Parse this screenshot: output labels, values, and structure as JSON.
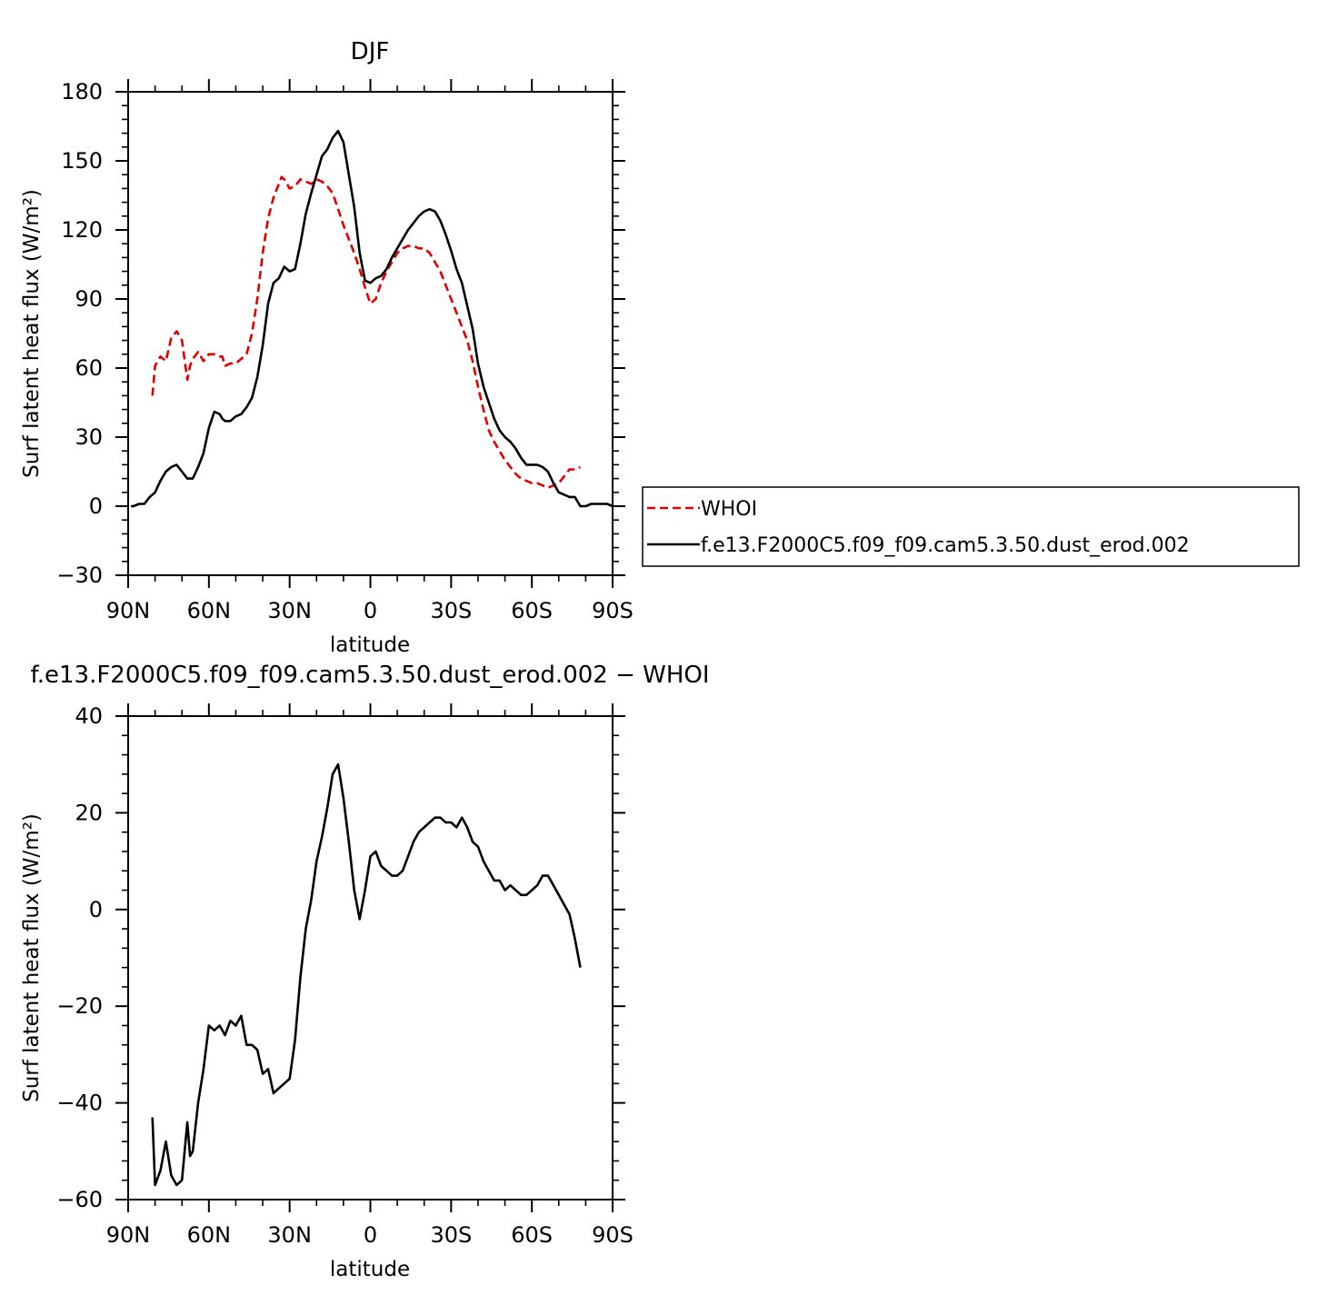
{
  "colors": {
    "model": "#000000",
    "obs": "#e00000",
    "background": "#ffffff"
  },
  "legend": {
    "entries": [
      {
        "label": "WHOI",
        "color": "#e00000",
        "dash": "dashed"
      },
      {
        "label": "f.e13.F2000C5.f09_f09.cam5.3.50.dust_erod.002",
        "color": "#000000",
        "dash": "solid"
      }
    ]
  },
  "chart_data": [
    {
      "type": "line",
      "title": "DJF",
      "xlabel": "latitude",
      "ylabel": "Surf latent heat flux (W/m²)",
      "xlim": [
        90,
        -90
      ],
      "ylim": [
        -30,
        180
      ],
      "xticks": [
        90,
        60,
        30,
        0,
        -30,
        -60,
        -90
      ],
      "xticklabels": [
        "90N",
        "60N",
        "30N",
        "0",
        "30S",
        "60S",
        "90S"
      ],
      "yticks": [
        -30,
        0,
        30,
        60,
        90,
        120,
        150,
        180
      ],
      "yticklabels": [
        "−30",
        "0",
        "30",
        "60",
        "90",
        "120",
        "150",
        "180"
      ],
      "grid": false,
      "legend_position": "right",
      "series": [
        {
          "name": "WHOI",
          "color": "#e00000",
          "dash": "dashed",
          "x": [
            81,
            80,
            78,
            76,
            75,
            74,
            72,
            70,
            68,
            67,
            66,
            64,
            62,
            60,
            58,
            56,
            55,
            54,
            52,
            50,
            48,
            46,
            44,
            42,
            40,
            38,
            36,
            34,
            33,
            32,
            30,
            28,
            26,
            24,
            22,
            20,
            18,
            16,
            14,
            12,
            10,
            8,
            6,
            4,
            2,
            0,
            -2,
            -4,
            -6,
            -8,
            -10,
            -12,
            -14,
            -16,
            -18,
            -20,
            -22,
            -24,
            -26,
            -28,
            -30,
            -32,
            -34,
            -36,
            -38,
            -40,
            -42,
            -44,
            -46,
            -48,
            -50,
            -52,
            -54,
            -56,
            -58,
            -60,
            -62,
            -64,
            -66,
            -68,
            -70,
            -72,
            -74,
            -76,
            -78
          ],
          "y": [
            48,
            61,
            65,
            63,
            68,
            73,
            76,
            72,
            55,
            61,
            64,
            67,
            63,
            66,
            66,
            65,
            65,
            61,
            62,
            62,
            64,
            66,
            75,
            90,
            110,
            125,
            134,
            140,
            143,
            142,
            138,
            139,
            142,
            141,
            140,
            142,
            141,
            139,
            136,
            129,
            122,
            116,
            110,
            103,
            95,
            88,
            90,
            97,
            102,
            106,
            110,
            112,
            113,
            113,
            112,
            112,
            110,
            106,
            102,
            96,
            90,
            84,
            78,
            72,
            63,
            52,
            42,
            33,
            28,
            24,
            20,
            17,
            14,
            12,
            11,
            10,
            10,
            9,
            8,
            9,
            10,
            13,
            16,
            16,
            17
          ]
        },
        {
          "name": "f.e13.F2000C5.f09_f09.cam5.3.50.dust_erod.002",
          "color": "#000000",
          "dash": "solid",
          "x": [
            89,
            88,
            86,
            84,
            82,
            81,
            80,
            78,
            76,
            74,
            72,
            70,
            68,
            66,
            64,
            62,
            60,
            58,
            56,
            55,
            54,
            52,
            50,
            48,
            46,
            44,
            42,
            40,
            38,
            36,
            34,
            32,
            30,
            28,
            26,
            24,
            22,
            20,
            18,
            16,
            14,
            12,
            10,
            8,
            6,
            4,
            2,
            0,
            -2,
            -4,
            -6,
            -8,
            -10,
            -12,
            -14,
            -16,
            -18,
            -20,
            -22,
            -24,
            -26,
            -28,
            -30,
            -32,
            -34,
            -36,
            -38,
            -40,
            -42,
            -44,
            -46,
            -48,
            -50,
            -52,
            -54,
            -56,
            -58,
            -60,
            -62,
            -64,
            -66,
            -68,
            -70,
            -72,
            -74,
            -76,
            -78,
            -80,
            -82,
            -84,
            -86,
            -88,
            -90
          ],
          "y": [
            0,
            0,
            1,
            1,
            4,
            5,
            6,
            11,
            15,
            17,
            18,
            15,
            12,
            12,
            17,
            23,
            34,
            41,
            40,
            38,
            37,
            37,
            39,
            40,
            43,
            47,
            56,
            70,
            88,
            97,
            99,
            104,
            102,
            103,
            114,
            127,
            136,
            144,
            152,
            155,
            160,
            163,
            158,
            144,
            130,
            110,
            98,
            97,
            99,
            100,
            103,
            108,
            112,
            116,
            120,
            123,
            126,
            128,
            129,
            128,
            124,
            118,
            111,
            103,
            97,
            87,
            77,
            62,
            52,
            45,
            38,
            33,
            30,
            28,
            25,
            21,
            18,
            18,
            18,
            17,
            15,
            10,
            6,
            5,
            4,
            4,
            0,
            0,
            1,
            1,
            1,
            1,
            0
          ]
        }
      ]
    },
    {
      "type": "line",
      "title": "f.e13.F2000C5.f09_f09.cam5.3.50.dust_erod.002 − WHOI",
      "xlabel": "latitude",
      "ylabel": "Surf latent heat flux (W/m²)",
      "xlim": [
        90,
        -90
      ],
      "ylim": [
        -60,
        40
      ],
      "xticks": [
        90,
        60,
        30,
        0,
        -30,
        -60,
        -90
      ],
      "xticklabels": [
        "90N",
        "60N",
        "30N",
        "0",
        "30S",
        "60S",
        "90S"
      ],
      "yticks": [
        -60,
        -40,
        -20,
        0,
        20,
        40
      ],
      "yticklabels": [
        "−60",
        "−40",
        "−20",
        "0",
        "20",
        "40"
      ],
      "grid": false,
      "series": [
        {
          "color": "#000000",
          "dash": "solid",
          "x": [
            81,
            80,
            78,
            76,
            74,
            72,
            70,
            68,
            67,
            66,
            64,
            62,
            60,
            58,
            56,
            55,
            54,
            52,
            50,
            48,
            46,
            44,
            42,
            40,
            38,
            36,
            34,
            32,
            30,
            28,
            26,
            24,
            22,
            20,
            18,
            16,
            14,
            12,
            10,
            8,
            6,
            4,
            2,
            0,
            -2,
            -4,
            -6,
            -8,
            -10,
            -12,
            -14,
            -16,
            -18,
            -20,
            -22,
            -24,
            -26,
            -28,
            -30,
            -32,
            -34,
            -36,
            -38,
            -40,
            -42,
            -44,
            -46,
            -48,
            -50,
            -52,
            -54,
            -56,
            -58,
            -60,
            -62,
            -64,
            -66,
            -68,
            -70,
            -72,
            -74,
            -76,
            -78
          ],
          "y": [
            -43,
            -57,
            -54,
            -48,
            -55,
            -57,
            -56,
            -44,
            -51,
            -50,
            -40,
            -33,
            -24,
            -25,
            -24,
            -25,
            -26,
            -23,
            -24,
            -22,
            -28,
            -28,
            -29,
            -34,
            -33,
            -38,
            -37,
            -36,
            -35,
            -27,
            -14,
            -4,
            2,
            10,
            15,
            21,
            28,
            30,
            23,
            14,
            4,
            -2,
            4,
            11,
            12,
            9,
            8,
            7,
            7,
            8,
            11,
            14,
            16,
            17,
            18,
            19,
            19,
            18,
            18,
            17,
            19,
            17,
            14,
            13,
            10,
            8,
            6,
            6,
            4,
            5,
            4,
            3,
            3,
            4,
            5,
            7,
            7,
            5,
            3,
            1,
            -1,
            -6,
            -12
          ]
        }
      ]
    }
  ]
}
